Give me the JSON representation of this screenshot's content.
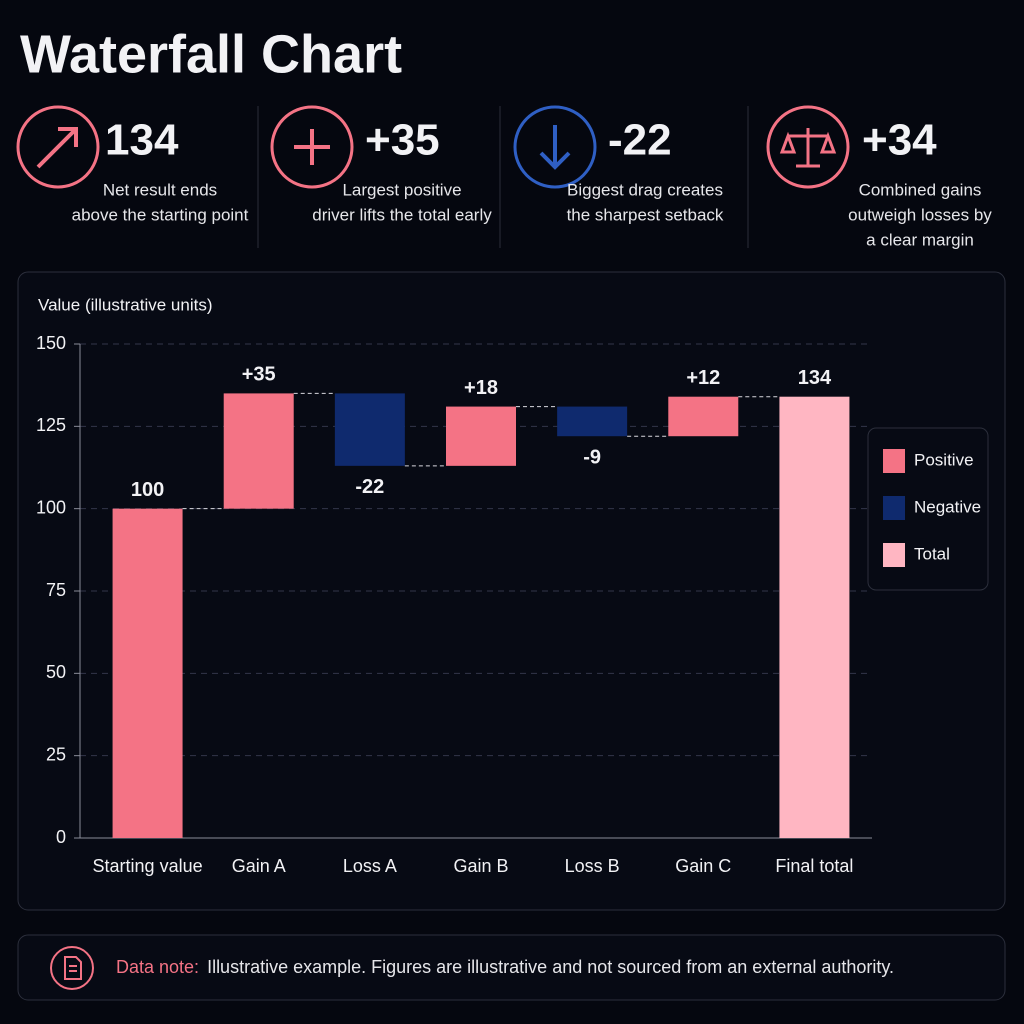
{
  "title": "Waterfall Chart",
  "kpis": [
    {
      "value": "134",
      "desc": [
        "Net result ends",
        "above the starting point"
      ],
      "color": "#f47385"
    },
    {
      "value": "+35",
      "desc": [
        "Largest positive",
        "driver lifts the total early"
      ],
      "color": "#f47385"
    },
    {
      "value": "-22",
      "desc": [
        "Biggest drag creates",
        "the sharpest setback"
      ],
      "color": "#2f5fc4"
    },
    {
      "value": "+34",
      "desc": [
        "Combined gains",
        "outweigh losses by",
        "a clear margin"
      ],
      "color": "#f47385"
    }
  ],
  "chart_data": {
    "type": "waterfall",
    "y_label": "Value (illustrative units)",
    "categories": [
      "Starting value",
      "Gain A",
      "Loss A",
      "Gain B",
      "Loss B",
      "Gain C",
      "Final total"
    ],
    "values": [
      100,
      35,
      -22,
      18,
      -9,
      12,
      134
    ],
    "value_labels": [
      "100",
      "+35",
      "-22",
      "+18",
      "-9",
      "+12",
      "134"
    ],
    "ylim": [
      0,
      150
    ],
    "yticks": [
      0,
      25,
      50,
      75,
      100,
      125,
      150
    ],
    "grid": true,
    "legend": [
      {
        "name": "Positive",
        "color": "#f47385"
      },
      {
        "name": "Negative",
        "color": "#0f2a6e"
      },
      {
        "name": "Total",
        "color": "#ffb6c2"
      }
    ]
  },
  "note": {
    "label": "Data note:",
    "text": "Illustrative example. Figures are illustrative and not sourced from an external authority."
  }
}
